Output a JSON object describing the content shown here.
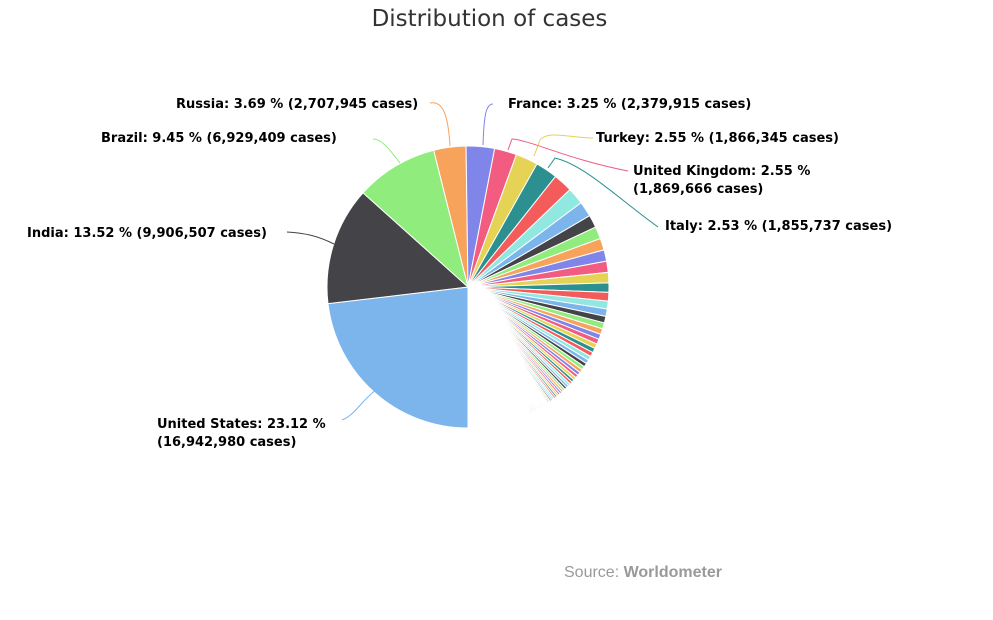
{
  "chart_data": {
    "type": "pie",
    "title": "Distribution of cases",
    "start_angle_deg": 180,
    "colors": [
      "#7cb5ec",
      "#434348",
      "#90ed7d",
      "#f7a35c",
      "#8085e9",
      "#f15c80",
      "#e4d354",
      "#2b908f",
      "#f45b5b",
      "#91e8e1"
    ],
    "labeled_slices": [
      {
        "name": "United States",
        "percent": 23.12,
        "cases": "16,942,980",
        "label_line1": "United States: 23.12 %",
        "label_line2": "(16,942,980 cases)"
      },
      {
        "name": "India",
        "percent": 13.52,
        "cases": "9,906,507",
        "label_line1": "India: 13.52 % (9,906,507 cases)"
      },
      {
        "name": "Brazil",
        "percent": 9.45,
        "cases": "6,929,409",
        "label_line1": "Brazil: 9.45 % (6,929,409 cases)"
      },
      {
        "name": "Russia",
        "percent": 3.69,
        "cases": "2,707,945",
        "label_line1": "Russia: 3.69 % (2,707,945 cases)"
      },
      {
        "name": "France",
        "percent": 3.25,
        "cases": "2,379,915",
        "label_line1": "France: 3.25 % (2,379,915 cases)"
      },
      {
        "name": "Turkey",
        "percent": 2.55,
        "cases": "1,866,345",
        "label_line1": "Turkey: 2.55 % (1,866,345 cases)"
      },
      {
        "name": "United Kingdom",
        "percent": 2.55,
        "cases": "1,869,666",
        "label_line1": "United Kingdom: 2.55 %",
        "label_line2": "(1,869,666 cases)"
      },
      {
        "name": "Italy",
        "percent": 2.53,
        "cases": "1,855,737",
        "label_line1": "Italy: 2.53 % (1,855,737 cases)"
      }
    ],
    "other_percents": [
      2.2,
      1.95,
      1.75,
      1.45,
      1.4,
      1.35,
      1.3,
      1.28,
      1.2,
      1.06,
      1.0,
      0.9,
      0.85,
      0.75,
      0.7,
      0.65,
      0.6,
      0.58,
      0.55,
      0.52,
      0.5,
      0.48,
      0.45,
      0.43,
      0.42,
      0.4,
      0.38,
      0.36,
      0.34,
      0.32,
      0.3,
      0.29,
      0.28,
      0.27,
      0.26,
      0.25,
      0.24,
      0.23,
      0.22,
      0.21,
      0.2,
      0.19,
      0.18,
      0.17,
      0.16,
      0.15,
      0.12,
      0.12,
      0.12,
      0.12,
      0.12,
      0.12,
      0.12,
      0.12,
      0.12,
      0.12,
      0.12,
      0.12,
      0.12,
      0.12,
      0.12,
      0.12,
      0.12,
      0.12,
      0.12,
      0.12,
      0.08,
      0.08,
      0.08,
      0.08,
      0.08,
      0.08,
      0.08,
      0.08,
      0.08,
      0.08,
      0.08,
      0.08,
      0.08,
      0.08,
      0.08,
      0.08,
      0.08,
      0.08,
      0.08,
      0.08,
      0.08,
      0.08,
      0.08,
      0.08,
      0.08,
      0.08,
      0.08,
      0.08,
      0.08,
      0.08,
      0.05,
      0.05,
      0.05,
      0.05,
      0.05,
      0.05,
      0.05,
      0.05,
      0.05,
      0.05,
      0.05,
      0.05,
      0.05,
      0.05,
      0.05,
      0.05,
      0.05,
      0.05,
      0.05,
      0.05,
      0.05,
      0.05,
      0.05,
      0.05,
      0.05,
      0.05,
      0.05,
      0.05,
      0.05,
      0.05,
      0.05,
      0.05,
      0.05,
      0.05,
      0.05,
      0.05,
      0.05,
      0.05,
      0.05,
      0.05,
      0.03,
      0.03,
      0.03,
      0.03,
      0.03,
      0.03,
      0.03,
      0.03,
      0.03,
      0.03,
      0.03,
      0.03,
      0.03,
      0.03,
      0.03,
      0.03,
      0.03,
      0.03,
      0.03,
      0.03,
      0.03,
      0.03,
      0.03,
      0.03,
      0.03,
      0.03,
      0.03,
      0.03,
      0.03,
      0.03,
      0.03,
      0.03,
      0.03,
      0.03,
      0.03,
      0.03,
      0.03,
      0.03,
      0.03,
      0.03,
      0.03,
      0.03,
      0.03,
      0.03,
      0.03,
      0.03,
      0.03,
      0.03,
      0.03,
      0.03,
      0.03,
      0.03,
      0.03,
      0.03,
      0.03,
      0.03,
      0.03,
      0.03,
      0.03,
      0.03,
      0.03,
      0.03,
      0.03,
      0.03,
      0.03,
      0.03,
      0.03,
      0.03,
      0.03,
      0.03,
      0.03,
      0.03,
      0.03,
      0.03,
      0.03,
      0.03,
      0.03,
      0.03,
      0.03,
      0.03,
      0.03,
      0.03,
      0.03,
      0.03,
      0.03,
      0.03,
      0.03,
      0.03,
      0.03,
      0.03,
      0.03,
      0.03,
      0.03,
      0.03
    ]
  },
  "source": {
    "prefix": "Source: ",
    "name": "Worldometer"
  }
}
